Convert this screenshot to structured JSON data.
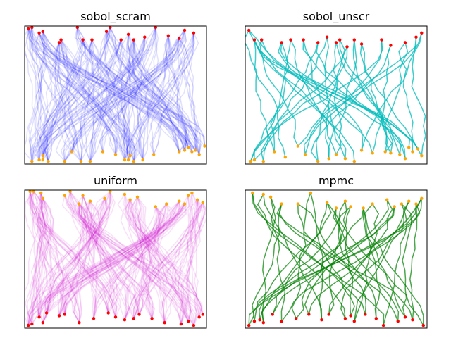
{
  "chart_data": [
    {
      "type": "line",
      "title": "sobol_scram",
      "series_color": "#0000ff",
      "line_opacity": 0.12,
      "n_paths": 40,
      "copies_per_path": 5,
      "start_color": "#ff0000",
      "end_color": "#ffa500",
      "starts": [
        [
          0.02,
          0.98
        ],
        [
          0.04,
          0.99
        ],
        [
          0.08,
          0.95
        ],
        [
          0.1,
          0.96
        ],
        [
          0.19,
          0.88
        ],
        [
          0.2,
          0.9
        ],
        [
          0.29,
          0.99
        ],
        [
          0.32,
          0.9
        ],
        [
          0.37,
          0.9
        ],
        [
          0.45,
          0.96
        ],
        [
          0.47,
          0.99
        ],
        [
          0.53,
          0.9
        ],
        [
          0.57,
          0.94
        ],
        [
          0.6,
          0.9
        ],
        [
          0.66,
          0.92
        ],
        [
          0.72,
          0.99
        ],
        [
          0.79,
          0.93
        ],
        [
          0.85,
          0.91
        ],
        [
          0.88,
          0.97
        ],
        [
          0.93,
          0.95
        ]
      ],
      "ends": [
        [
          0.04,
          0.02
        ],
        [
          0.08,
          0.03
        ],
        [
          0.1,
          0.03
        ],
        [
          0.13,
          0.02
        ],
        [
          0.1,
          0.06
        ],
        [
          0.22,
          0.02
        ],
        [
          0.26,
          0.09
        ],
        [
          0.31,
          0.02
        ],
        [
          0.36,
          0.02
        ],
        [
          0.43,
          0.09
        ],
        [
          0.5,
          0.07
        ],
        [
          0.55,
          0.03
        ],
        [
          0.57,
          0.03
        ],
        [
          0.58,
          0.06
        ],
        [
          0.6,
          0.02
        ],
        [
          0.65,
          0.03
        ],
        [
          0.71,
          0.07
        ],
        [
          0.85,
          0.09
        ],
        [
          0.88,
          0.1
        ],
        [
          0.9,
          0.12
        ],
        [
          0.92,
          0.09
        ],
        [
          0.94,
          0.1
        ],
        [
          0.96,
          0.07
        ],
        [
          0.99,
          0.13
        ]
      ]
    },
    {
      "type": "line",
      "title": "sobol_unscr",
      "series_color": "#00bbbb",
      "line_opacity": 0.75,
      "n_paths": 40,
      "copies_per_path": 1,
      "start_color": "#ff0000",
      "end_color": "#ffa500",
      "starts": [
        [
          0.02,
          0.97
        ],
        [
          0.05,
          0.9
        ],
        [
          0.09,
          0.9
        ],
        [
          0.2,
          0.88
        ],
        [
          0.25,
          0.9
        ],
        [
          0.32,
          0.9
        ],
        [
          0.4,
          0.88
        ],
        [
          0.45,
          0.92
        ],
        [
          0.5,
          0.88
        ],
        [
          0.52,
          0.9
        ],
        [
          0.56,
          0.85
        ],
        [
          0.6,
          0.9
        ],
        [
          0.64,
          0.87
        ],
        [
          0.75,
          0.9
        ],
        [
          0.8,
          0.86
        ],
        [
          0.88,
          0.88
        ],
        [
          0.94,
          0.92
        ],
        [
          0.97,
          0.95
        ]
      ],
      "ends": [
        [
          0.03,
          0.02
        ],
        [
          0.05,
          0.03
        ],
        [
          0.1,
          0.02
        ],
        [
          0.16,
          0.09
        ],
        [
          0.22,
          0.05
        ],
        [
          0.29,
          0.13
        ],
        [
          0.33,
          0.07
        ],
        [
          0.4,
          0.02
        ],
        [
          0.46,
          0.04
        ],
        [
          0.5,
          0.07
        ],
        [
          0.55,
          0.04
        ],
        [
          0.6,
          0.02
        ],
        [
          0.64,
          0.1
        ],
        [
          0.7,
          0.08
        ],
        [
          0.77,
          0.09
        ],
        [
          0.8,
          0.08
        ],
        [
          0.85,
          0.07
        ],
        [
          0.88,
          0.04
        ],
        [
          0.9,
          0.12
        ],
        [
          0.92,
          0.09
        ],
        [
          0.95,
          0.11
        ],
        [
          0.97,
          0.06
        ]
      ]
    },
    {
      "type": "line",
      "title": "uniform",
      "series_color": "#cc00cc",
      "line_opacity": 0.12,
      "n_paths": 40,
      "copies_per_path": 5,
      "start_color": "#ff0000",
      "end_color": "#ffa500",
      "starts": [
        [
          0.02,
          0.02
        ],
        [
          0.04,
          0.03
        ],
        [
          0.1,
          0.04
        ],
        [
          0.08,
          0.08
        ],
        [
          0.12,
          0.11
        ],
        [
          0.19,
          0.09
        ],
        [
          0.22,
          0.1
        ],
        [
          0.3,
          0.04
        ],
        [
          0.38,
          0.07
        ],
        [
          0.46,
          0.11
        ],
        [
          0.5,
          0.08
        ],
        [
          0.55,
          0.06
        ],
        [
          0.6,
          0.07
        ],
        [
          0.63,
          0.1
        ],
        [
          0.7,
          0.07
        ],
        [
          0.77,
          0.04
        ],
        [
          0.86,
          0.03
        ],
        [
          0.9,
          0.05
        ],
        [
          0.93,
          0.02
        ],
        [
          0.96,
          0.08
        ],
        [
          0.98,
          0.1
        ]
      ],
      "ends": [
        [
          0.03,
          0.99
        ],
        [
          0.05,
          0.99
        ],
        [
          0.09,
          0.98
        ],
        [
          0.1,
          0.94
        ],
        [
          0.22,
          0.96
        ],
        [
          0.25,
          0.99
        ],
        [
          0.3,
          0.9
        ],
        [
          0.32,
          0.96
        ],
        [
          0.36,
          0.92
        ],
        [
          0.44,
          0.94
        ],
        [
          0.47,
          0.99
        ],
        [
          0.55,
          0.97
        ],
        [
          0.58,
          0.93
        ],
        [
          0.62,
          0.95
        ],
        [
          0.72,
          0.88
        ],
        [
          0.78,
          0.9
        ],
        [
          0.85,
          0.92
        ],
        [
          0.88,
          0.9
        ],
        [
          0.9,
          0.96
        ],
        [
          0.92,
          0.98
        ],
        [
          0.95,
          0.93
        ],
        [
          0.98,
          0.91
        ]
      ]
    },
    {
      "type": "line",
      "title": "mpmc",
      "series_color": "#008000",
      "line_opacity": 0.7,
      "n_paths": 40,
      "copies_per_path": 1,
      "start_color": "#ff0000",
      "end_color": "#ffa500",
      "starts": [
        [
          0.02,
          0.02
        ],
        [
          0.05,
          0.05
        ],
        [
          0.08,
          0.06
        ],
        [
          0.1,
          0.04
        ],
        [
          0.15,
          0.1
        ],
        [
          0.2,
          0.05
        ],
        [
          0.28,
          0.07
        ],
        [
          0.35,
          0.1
        ],
        [
          0.42,
          0.06
        ],
        [
          0.46,
          0.1
        ],
        [
          0.55,
          0.07
        ],
        [
          0.58,
          0.09
        ],
        [
          0.6,
          0.05
        ],
        [
          0.66,
          0.1
        ],
        [
          0.72,
          0.07
        ],
        [
          0.76,
          0.02
        ],
        [
          0.84,
          0.05
        ],
        [
          0.88,
          0.08
        ],
        [
          0.92,
          0.06
        ],
        [
          0.98,
          0.02
        ]
      ],
      "ends": [
        [
          0.04,
          0.98
        ],
        [
          0.1,
          0.97
        ],
        [
          0.14,
          0.95
        ],
        [
          0.2,
          0.9
        ],
        [
          0.29,
          0.9
        ],
        [
          0.36,
          0.98
        ],
        [
          0.45,
          0.91
        ],
        [
          0.5,
          0.87
        ],
        [
          0.55,
          0.92
        ],
        [
          0.58,
          0.88
        ],
        [
          0.65,
          0.87
        ],
        [
          0.7,
          0.9
        ],
        [
          0.78,
          0.93
        ],
        [
          0.82,
          0.88
        ],
        [
          0.86,
          0.9
        ],
        [
          0.9,
          0.92
        ],
        [
          0.94,
          0.9
        ],
        [
          0.97,
          0.94
        ]
      ]
    }
  ]
}
